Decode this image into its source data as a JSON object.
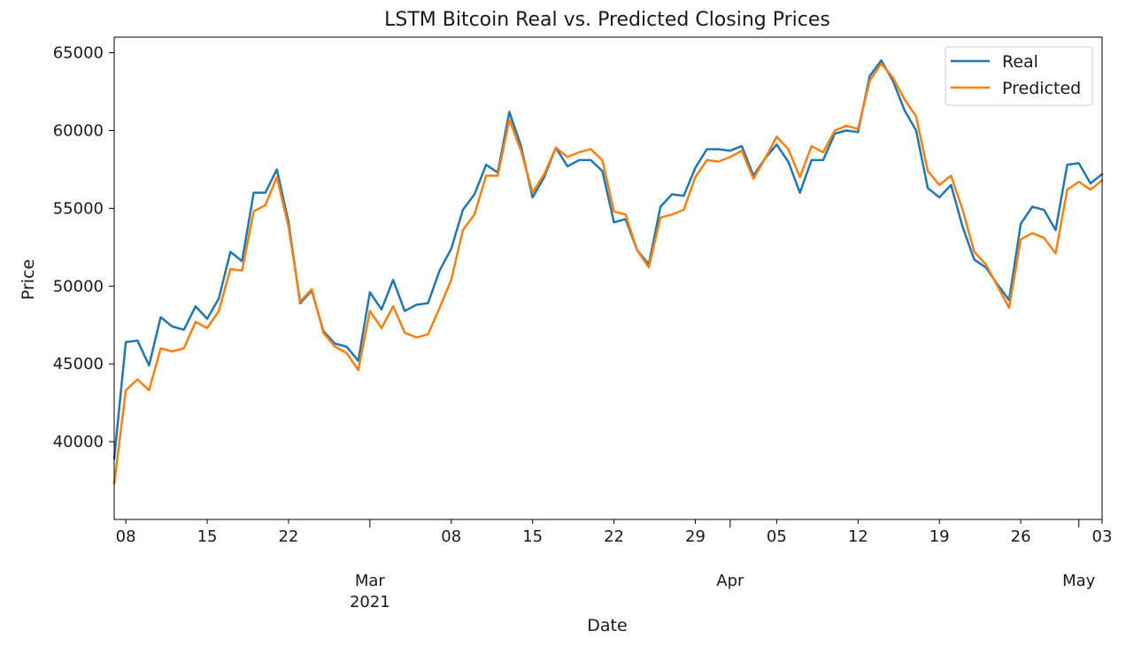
{
  "chart_data": {
    "type": "line",
    "title": "LSTM Bitcoin Real vs. Predicted Closing Prices",
    "xlabel": "Date",
    "ylabel": "Price",
    "x_start": "2021-02-07",
    "x_end": "2021-05-03",
    "x": [
      "2021-02-07",
      "2021-02-08",
      "2021-02-09",
      "2021-02-10",
      "2021-02-11",
      "2021-02-12",
      "2021-02-13",
      "2021-02-14",
      "2021-02-15",
      "2021-02-16",
      "2021-02-17",
      "2021-02-18",
      "2021-02-19",
      "2021-02-20",
      "2021-02-21",
      "2021-02-22",
      "2021-02-23",
      "2021-02-24",
      "2021-02-25",
      "2021-02-26",
      "2021-02-27",
      "2021-02-28",
      "2021-03-01",
      "2021-03-02",
      "2021-03-03",
      "2021-03-04",
      "2021-03-05",
      "2021-03-06",
      "2021-03-07",
      "2021-03-08",
      "2021-03-09",
      "2021-03-10",
      "2021-03-11",
      "2021-03-12",
      "2021-03-13",
      "2021-03-14",
      "2021-03-15",
      "2021-03-16",
      "2021-03-17",
      "2021-03-18",
      "2021-03-19",
      "2021-03-20",
      "2021-03-21",
      "2021-03-22",
      "2021-03-23",
      "2021-03-24",
      "2021-03-25",
      "2021-03-26",
      "2021-03-27",
      "2021-03-28",
      "2021-03-29",
      "2021-03-30",
      "2021-03-31",
      "2021-04-01",
      "2021-04-02",
      "2021-04-03",
      "2021-04-04",
      "2021-04-05",
      "2021-04-06",
      "2021-04-07",
      "2021-04-08",
      "2021-04-09",
      "2021-04-10",
      "2021-04-11",
      "2021-04-12",
      "2021-04-13",
      "2021-04-14",
      "2021-04-15",
      "2021-04-16",
      "2021-04-17",
      "2021-04-18",
      "2021-04-19",
      "2021-04-20",
      "2021-04-21",
      "2021-04-22",
      "2021-04-23",
      "2021-04-24",
      "2021-04-25",
      "2021-04-26",
      "2021-04-27",
      "2021-04-28",
      "2021-04-29",
      "2021-04-30",
      "2021-05-01",
      "2021-05-02",
      "2021-05-03"
    ],
    "series": [
      {
        "name": "Real",
        "color": "#1f77b4",
        "values": [
          38900,
          46400,
          46500,
          44900,
          48000,
          47400,
          47200,
          48700,
          47900,
          49200,
          52200,
          51600,
          56000,
          56000,
          57500,
          54100,
          48900,
          49700,
          47100,
          46300,
          46100,
          45200,
          49600,
          48500,
          50400,
          48400,
          48800,
          48900,
          51000,
          52400,
          54900,
          55900,
          57800,
          57300,
          61200,
          59000,
          55700,
          57000,
          58900,
          57700,
          58100,
          58100,
          57400,
          54100,
          54300,
          52300,
          51400,
          55100,
          55900,
          55800,
          57600,
          58800,
          58800,
          58700,
          59000,
          57100,
          58200,
          59100,
          58000,
          56000,
          58100,
          58100,
          59800,
          60000,
          59900,
          63500,
          64500,
          63200,
          61300,
          60000,
          56300,
          55700,
          56500,
          53800,
          51700,
          51200,
          50100,
          49100,
          54000,
          55100,
          54900,
          53600,
          57800,
          57900,
          56600,
          57200
        ]
      },
      {
        "name": "Predicted",
        "color": "#ff7f0e",
        "values": [
          37300,
          43300,
          44000,
          43300,
          46000,
          45800,
          46000,
          47700,
          47300,
          48400,
          51100,
          51000,
          54800,
          55200,
          57000,
          53800,
          49000,
          49800,
          47000,
          46100,
          45700,
          44600,
          48400,
          47300,
          48700,
          47000,
          46700,
          46900,
          48600,
          50400,
          53600,
          54600,
          57100,
          57100,
          60700,
          58700,
          56000,
          57200,
          58900,
          58300,
          58600,
          58800,
          58100,
          54800,
          54600,
          52300,
          51200,
          54400,
          54600,
          54900,
          57000,
          58100,
          58000,
          58300,
          58700,
          56900,
          58200,
          59600,
          58800,
          57000,
          59000,
          58600,
          60000,
          60300,
          60100,
          63200,
          64300,
          63400,
          62000,
          60900,
          57400,
          56500,
          57100,
          54900,
          52200,
          51400,
          50000,
          48600,
          53000,
          53400,
          53100,
          52100,
          56200,
          56700,
          56200,
          56800
        ]
      }
    ],
    "ylim": [
      35000,
      66000
    ],
    "yticks": [
      40000,
      45000,
      50000,
      55000,
      60000,
      65000
    ],
    "xticks_major": [
      {
        "date": "2021-03-01",
        "label": "Mar",
        "year": "2021"
      },
      {
        "date": "2021-04-01",
        "label": "Apr"
      },
      {
        "date": "2021-05-01",
        "label": "May"
      }
    ],
    "xticks_minor": [
      {
        "date": "2021-02-08",
        "label": "08"
      },
      {
        "date": "2021-02-15",
        "label": "15"
      },
      {
        "date": "2021-02-22",
        "label": "22"
      },
      {
        "date": "2021-03-08",
        "label": "08"
      },
      {
        "date": "2021-03-15",
        "label": "15"
      },
      {
        "date": "2021-03-22",
        "label": "22"
      },
      {
        "date": "2021-03-29",
        "label": "29"
      },
      {
        "date": "2021-04-05",
        "label": "05"
      },
      {
        "date": "2021-04-12",
        "label": "12"
      },
      {
        "date": "2021-04-19",
        "label": "19"
      },
      {
        "date": "2021-04-26",
        "label": "26"
      },
      {
        "date": "2021-05-03",
        "label": "03"
      }
    ],
    "legend": {
      "placement": "top-right"
    },
    "grid": false
  }
}
